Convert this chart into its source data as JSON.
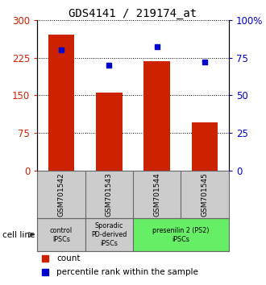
{
  "title": "GDS4141 / 219174_at",
  "samples": [
    "GSM701542",
    "GSM701543",
    "GSM701544",
    "GSM701545"
  ],
  "counts": [
    270,
    155,
    218,
    95
  ],
  "percentiles": [
    80,
    70,
    82,
    72
  ],
  "ylim_left": [
    0,
    300
  ],
  "ylim_right": [
    0,
    100
  ],
  "yticks_left": [
    0,
    75,
    150,
    225,
    300
  ],
  "yticks_right": [
    0,
    25,
    50,
    75,
    100
  ],
  "ytick_labels_right": [
    "0",
    "25",
    "50",
    "75",
    "100%"
  ],
  "bar_color": "#cc2200",
  "dot_color": "#0000cc",
  "grid_color": "#000000",
  "groups": [
    {
      "label": "control\nIPSCs",
      "start": 0,
      "end": 1,
      "color": "#cccccc"
    },
    {
      "label": "Sporadic\nPD-derived\niPSCs",
      "start": 1,
      "end": 2,
      "color": "#cccccc"
    },
    {
      "label": "presenilin 2 (PS2)\niPSCs",
      "start": 2,
      "end": 4,
      "color": "#66ee66"
    }
  ],
  "cell_line_label": "cell line",
  "legend_count_label": "count",
  "legend_pct_label": "percentile rank within the sample",
  "sample_box_color": "#cccccc",
  "border_color": "#666666"
}
